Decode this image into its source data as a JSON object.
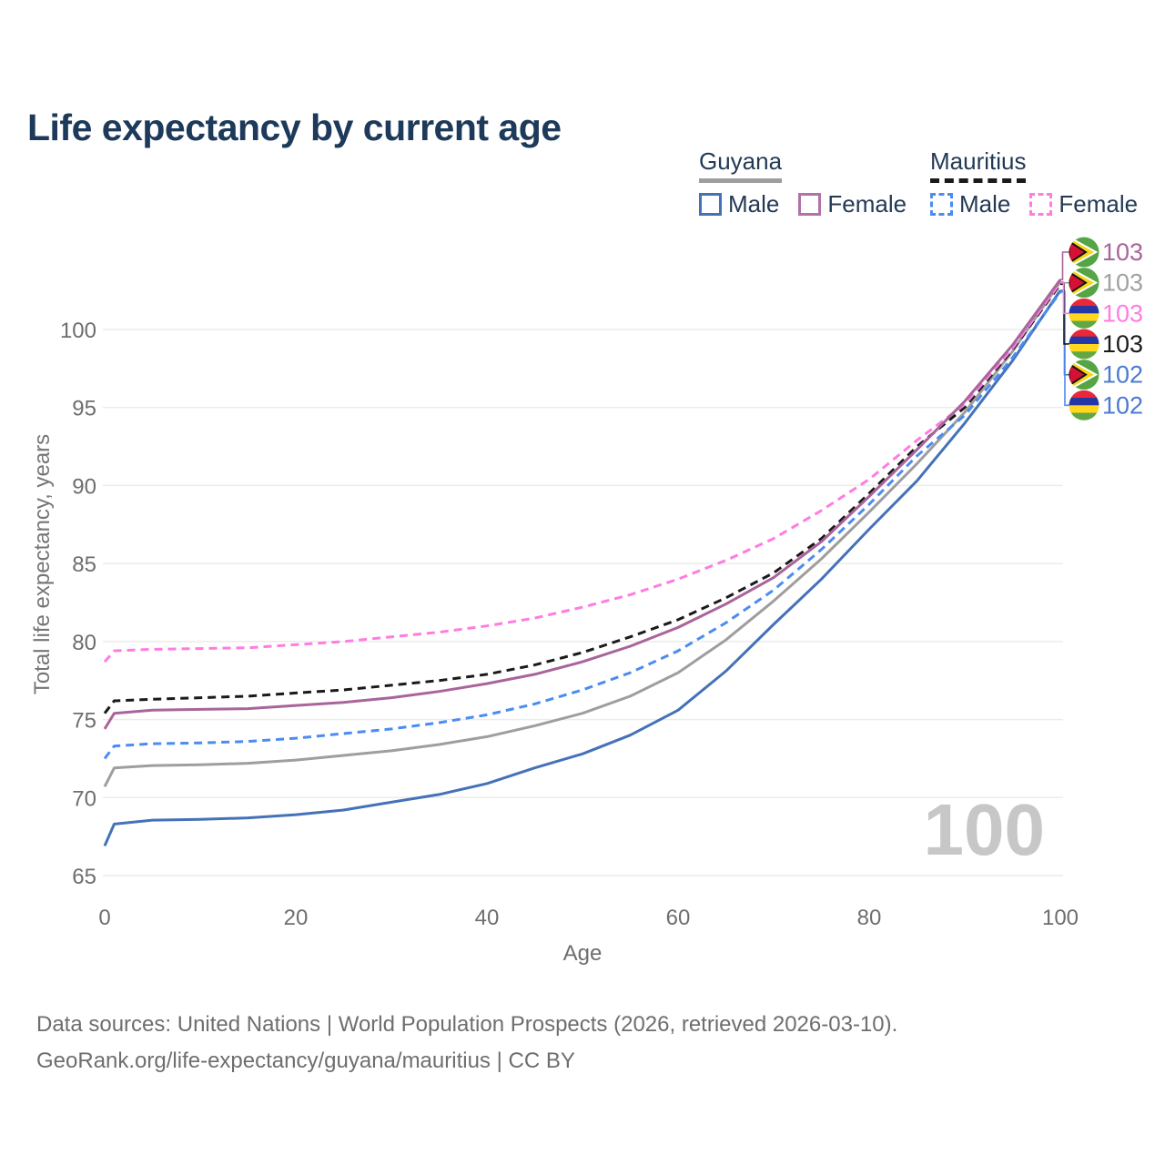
{
  "title": "Life expectancy by current age",
  "watermark": "100",
  "footer": {
    "line1": "Data sources: United Nations | World Population Prospects (2026, retrieved 2026-03-10).",
    "line2": "GeoRank.org/life-expectancy/guyana/mauritius | CC BY"
  },
  "colors": {
    "title_text": "#1d3a5a",
    "legend_text": "#233a55",
    "axis_text": "#6e6e6e",
    "gridline": "#ececec",
    "watermark": "#c7c7c7",
    "guyana_male": "#4472b8",
    "guyana_female": "#a8649b",
    "guyana_all": "#9e9e9e",
    "mauritius_male": "#4b8cf2",
    "mauritius_female": "#ff7ce0",
    "mauritius_all": "#1a1a1a"
  },
  "legend": {
    "groups": [
      {
        "name": "Guyana",
        "underline_style": "solid",
        "underline_color": "#9e9e9e",
        "items": [
          {
            "label": "Male",
            "color": "#4472b8",
            "dashed": false
          },
          {
            "label": "Female",
            "color": "#b271a8",
            "dashed": false
          }
        ]
      },
      {
        "name": "Mauritius",
        "underline_style": "dashed",
        "underline_color": "#1a1a1a",
        "items": [
          {
            "label": "Male",
            "color": "#4b8cf2",
            "dashed": true
          },
          {
            "label": "Female",
            "color": "#ff7ce0",
            "dashed": true
          }
        ]
      }
    ]
  },
  "chart_data": {
    "type": "line",
    "title": "Life expectancy by current age",
    "xlabel": "Age",
    "ylabel": "Total life expectancy, years",
    "xlim": [
      0,
      100
    ],
    "ylim": [
      65,
      103.5
    ],
    "x_ticks": [
      0,
      20,
      40,
      60,
      80,
      100
    ],
    "y_ticks": [
      65,
      70,
      75,
      80,
      85,
      90,
      95,
      100
    ],
    "grid": "horizontal",
    "legend_position": "top-right",
    "ages": [
      0,
      1,
      5,
      10,
      15,
      20,
      25,
      30,
      35,
      40,
      45,
      50,
      55,
      60,
      65,
      70,
      75,
      80,
      85,
      90,
      95,
      100
    ],
    "series": [
      {
        "name": "Guyana (all)",
        "country": "Guyana",
        "sex": "all",
        "color": "#9e9e9e",
        "label_color": "#a1a1a1",
        "dashed": false,
        "flag": "guyana",
        "end_label": "103",
        "flag_row": 1,
        "values": [
          70.7,
          71.9,
          72.05,
          72.1,
          72.2,
          72.4,
          72.7,
          73.0,
          73.4,
          73.9,
          74.6,
          75.4,
          76.5,
          78.0,
          80.1,
          82.6,
          85.3,
          88.3,
          91.4,
          94.7,
          98.6,
          103.05
        ]
      },
      {
        "name": "Guyana Male",
        "country": "Guyana",
        "sex": "male",
        "color": "#4472b8",
        "label_color": "#4a7ad0",
        "dashed": false,
        "flag": "guyana",
        "end_label": "102",
        "flag_row": 4,
        "values": [
          66.9,
          68.3,
          68.55,
          68.6,
          68.7,
          68.9,
          69.2,
          69.7,
          70.2,
          70.9,
          71.9,
          72.8,
          74.0,
          75.6,
          78.1,
          81.1,
          84.0,
          87.2,
          90.3,
          94.0,
          98.0,
          102.5
        ]
      },
      {
        "name": "Mauritius Male",
        "country": "Mauritius",
        "sex": "male",
        "color": "#4b8cf2",
        "label_color": "#4a7ad0",
        "dashed": true,
        "flag": "mauritius",
        "end_label": "102",
        "flag_row": 5,
        "values": [
          72.5,
          73.3,
          73.45,
          73.5,
          73.6,
          73.8,
          74.1,
          74.4,
          74.8,
          75.3,
          76.0,
          76.9,
          78.0,
          79.4,
          81.2,
          83.3,
          85.9,
          88.8,
          91.9,
          94.5,
          98.2,
          102.4
        ]
      },
      {
        "name": "Mauritius (all)",
        "country": "Mauritius",
        "sex": "all",
        "color": "#1a1a1a",
        "label_color": "#1a1a1a",
        "dashed": true,
        "flag": "mauritius",
        "end_label": "103",
        "flag_row": 3,
        "values": [
          75.4,
          76.2,
          76.3,
          76.4,
          76.5,
          76.7,
          76.9,
          77.2,
          77.5,
          77.9,
          78.5,
          79.3,
          80.3,
          81.4,
          82.8,
          84.4,
          86.6,
          89.5,
          92.5,
          95.0,
          98.7,
          102.9
        ]
      },
      {
        "name": "Mauritius Female",
        "country": "Mauritius",
        "sex": "female",
        "color": "#ff7ce0",
        "label_color": "#ff7ce0",
        "dashed": true,
        "flag": "mauritius",
        "end_label": "103",
        "flag_row": 2,
        "values": [
          78.7,
          79.4,
          79.5,
          79.55,
          79.6,
          79.8,
          80.0,
          80.3,
          80.6,
          81.0,
          81.5,
          82.2,
          83.0,
          84.0,
          85.2,
          86.6,
          88.4,
          90.4,
          92.9,
          95.2,
          98.8,
          103.0
        ]
      },
      {
        "name": "Guyana Female",
        "country": "Guyana",
        "sex": "female",
        "color": "#a8649b",
        "label_color": "#a8649b",
        "dashed": false,
        "flag": "guyana",
        "end_label": "103",
        "flag_row": 0,
        "values": [
          74.4,
          75.4,
          75.6,
          75.65,
          75.7,
          75.9,
          76.1,
          76.4,
          76.8,
          77.3,
          77.9,
          78.7,
          79.7,
          80.9,
          82.4,
          84.1,
          86.4,
          89.3,
          92.3,
          95.4,
          99.0,
          103.2
        ]
      }
    ]
  }
}
